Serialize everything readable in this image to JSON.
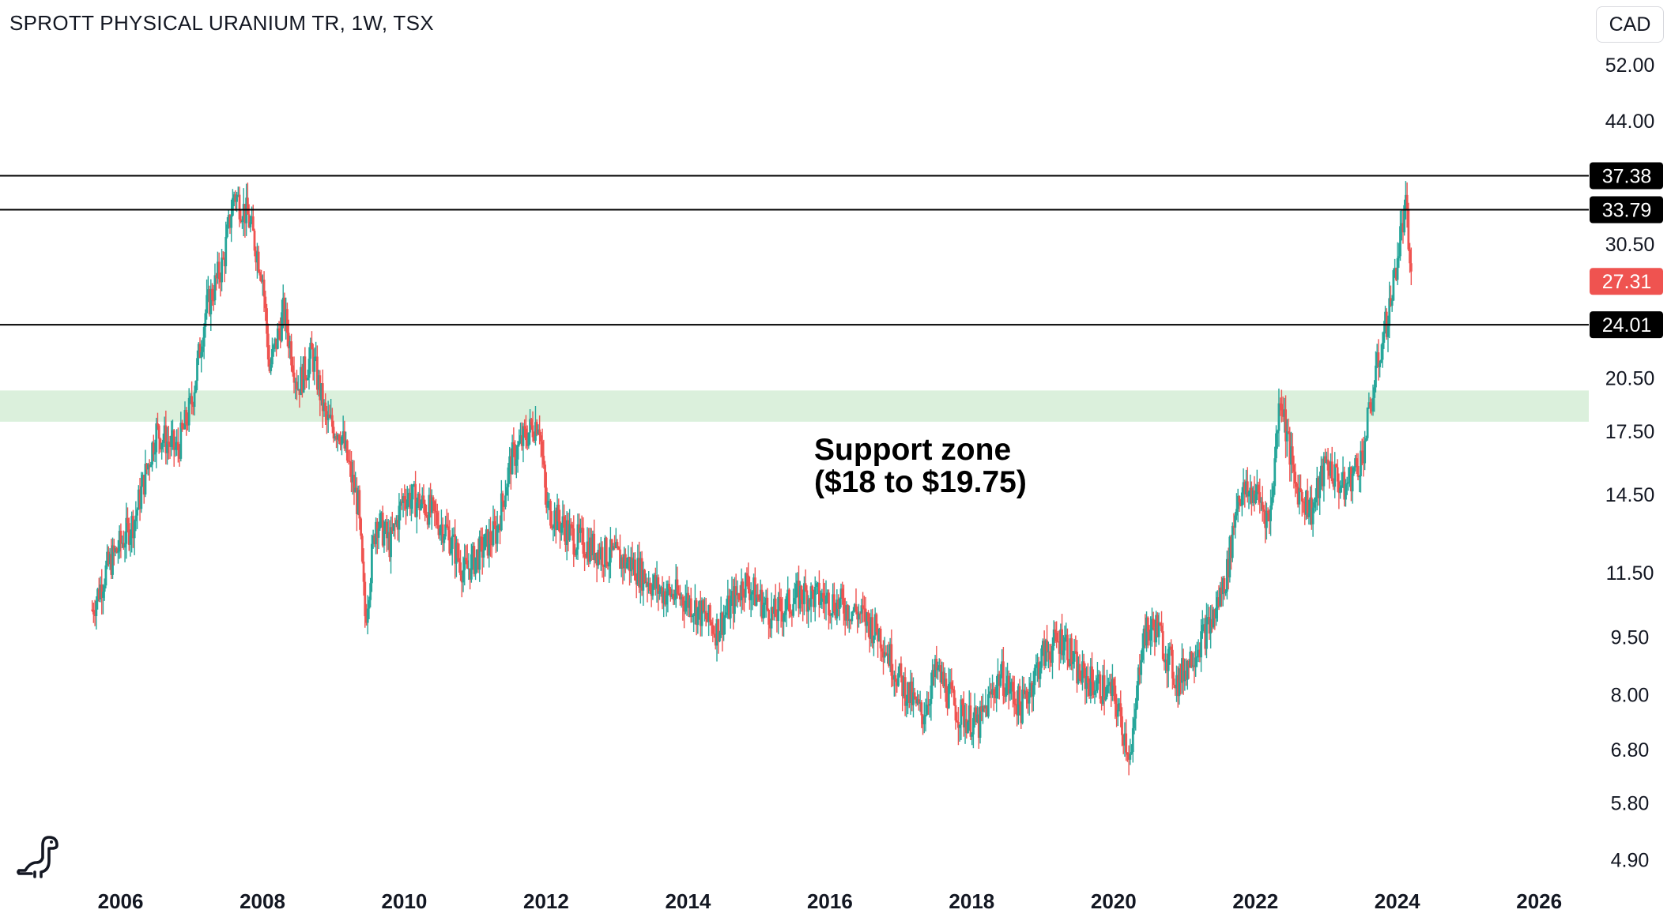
{
  "title": "SPROTT PHYSICAL URANIUM TR, 1W, TSX",
  "currency_label": "CAD",
  "logo_icon": "dinosaur-icon",
  "colors": {
    "up": "#26a69a",
    "down": "#ef5350",
    "support_zone": "#dbf0dc",
    "level_line": "#000000",
    "last_price_badge": "#ef5350",
    "level_badge": "#000000",
    "axis_text": "#131722"
  },
  "chart_data": {
    "type": "candlestick",
    "title": "SPROTT PHYSICAL URANIUM TR, 1W, TSX",
    "timeframe": "1W",
    "exchange": "TSX",
    "currency": "CAD",
    "scale": "log",
    "xlim": [
      2004.3,
      2026.7
    ],
    "ylim": [
      4.55,
      63
    ],
    "x_ticks": [
      "2006",
      "2008",
      "2010",
      "2012",
      "2014",
      "2016",
      "2018",
      "2020",
      "2022",
      "2024",
      "2026"
    ],
    "y_ticks": [
      "52.00",
      "44.00",
      "30.50",
      "20.50",
      "17.50",
      "14.50",
      "11.50",
      "9.50",
      "8.00",
      "6.80",
      "5.80",
      "4.90"
    ],
    "grid": false,
    "legend": "none",
    "price_anchors": [
      [
        2005.6,
        10.3
      ],
      [
        2005.8,
        11.6
      ],
      [
        2006.2,
        13.5
      ],
      [
        2006.5,
        17.5
      ],
      [
        2006.8,
        16.5
      ],
      [
        2007.0,
        19.0
      ],
      [
        2007.2,
        25.0
      ],
      [
        2007.45,
        29.0
      ],
      [
        2007.6,
        35.5
      ],
      [
        2007.8,
        33.0
      ],
      [
        2008.0,
        28.0
      ],
      [
        2008.1,
        21.0
      ],
      [
        2008.3,
        25.0
      ],
      [
        2008.5,
        20.0
      ],
      [
        2008.7,
        22.0
      ],
      [
        2008.9,
        18.0
      ],
      [
        2009.1,
        17.5
      ],
      [
        2009.35,
        14.0
      ],
      [
        2009.45,
        10.0
      ],
      [
        2009.6,
        13.5
      ],
      [
        2009.8,
        12.5
      ],
      [
        2010.0,
        14.5
      ],
      [
        2010.3,
        14.0
      ],
      [
        2010.6,
        13.0
      ],
      [
        2010.85,
        11.5
      ],
      [
        2011.0,
        12.0
      ],
      [
        2011.3,
        13.0
      ],
      [
        2011.5,
        16.0
      ],
      [
        2011.7,
        17.2
      ],
      [
        2011.9,
        18.2
      ],
      [
        2012.0,
        14.0
      ],
      [
        2012.4,
        12.7
      ],
      [
        2012.8,
        12.2
      ],
      [
        2013.2,
        11.8
      ],
      [
        2013.6,
        10.9
      ],
      [
        2014.0,
        10.6
      ],
      [
        2014.4,
        9.7
      ],
      [
        2014.8,
        11.2
      ],
      [
        2015.2,
        10.1
      ],
      [
        2015.6,
        10.8
      ],
      [
        2016.0,
        10.6
      ],
      [
        2016.4,
        10.2
      ],
      [
        2016.7,
        9.6
      ],
      [
        2017.0,
        8.3
      ],
      [
        2017.3,
        7.5
      ],
      [
        2017.5,
        8.6
      ],
      [
        2017.8,
        7.6
      ],
      [
        2018.1,
        7.3
      ],
      [
        2018.4,
        8.5
      ],
      [
        2018.7,
        7.7
      ],
      [
        2019.0,
        9.0
      ],
      [
        2019.3,
        9.5
      ],
      [
        2019.5,
        8.5
      ],
      [
        2019.8,
        8.2
      ],
      [
        2020.0,
        8.0
      ],
      [
        2020.25,
        6.6
      ],
      [
        2020.4,
        9.5
      ],
      [
        2020.6,
        9.8
      ],
      [
        2020.9,
        8.3
      ],
      [
        2021.1,
        9.0
      ],
      [
        2021.4,
        10.0
      ],
      [
        2021.6,
        11.5
      ],
      [
        2021.75,
        14.5
      ],
      [
        2022.0,
        14.6
      ],
      [
        2022.2,
        13.4
      ],
      [
        2022.35,
        19.7
      ],
      [
        2022.55,
        15.0
      ],
      [
        2022.8,
        13.8
      ],
      [
        2023.0,
        16.0
      ],
      [
        2023.25,
        14.7
      ],
      [
        2023.5,
        16.2
      ],
      [
        2023.75,
        22.0
      ],
      [
        2023.9,
        25.5
      ],
      [
        2024.05,
        31.5
      ],
      [
        2024.12,
        33.8
      ],
      [
        2024.2,
        27.31
      ]
    ],
    "horizontal_levels": [
      {
        "value": 37.38,
        "label": "37.38"
      },
      {
        "value": 33.79,
        "label": "33.79"
      },
      {
        "value": 24.01,
        "label": "24.01"
      }
    ],
    "last_price": {
      "value": 27.31,
      "label": "27.31"
    },
    "support_zone": {
      "low": 18,
      "high": 19.75
    },
    "annotations": [
      {
        "text": "Support zone",
        "line": 1
      },
      {
        "text": "($18 to $19.75)",
        "line": 2
      }
    ]
  }
}
